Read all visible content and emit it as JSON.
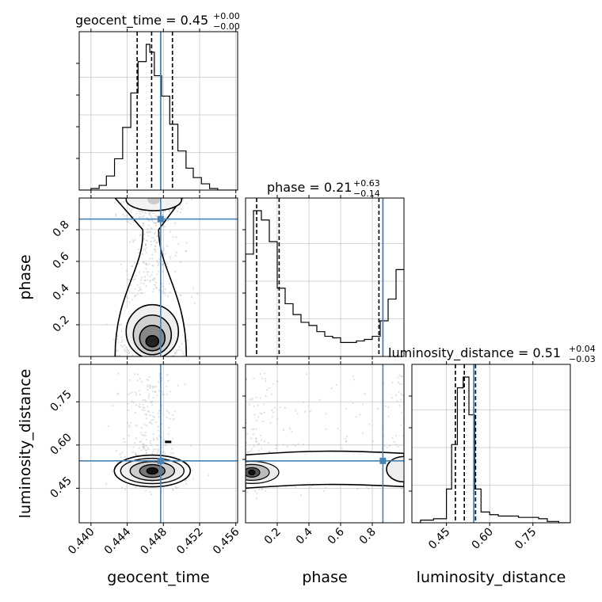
{
  "chart_data": {
    "type": "corner",
    "parameters": [
      "geocent_time",
      "phase",
      "luminosity_distance"
    ],
    "truth": {
      "geocent_time": 0.4477,
      "phase": 0.867,
      "luminosity_distance": 0.545
    },
    "colors": {
      "truth": "#4682b4",
      "hist": "#000000",
      "grid": "#c8c8c8",
      "samples": "#999999"
    },
    "axes": {
      "geocent_time": {
        "range": [
          0.4387,
          0.4562
        ],
        "ticks": [
          0.44,
          0.444,
          0.448,
          0.452,
          0.456
        ],
        "tick_labels": [
          "0.440",
          "0.444",
          "0.448",
          "0.452",
          "0.456"
        ]
      },
      "phase": {
        "range": [
          0.0,
          1.0
        ],
        "ticks": [
          0.2,
          0.4,
          0.6,
          0.8
        ],
        "tick_labels": [
          "0.2",
          "0.4",
          "0.6",
          "0.8"
        ]
      },
      "luminosity_distance": {
        "range": [
          0.33,
          0.88
        ],
        "ticks": [
          0.45,
          0.6,
          0.75
        ],
        "tick_labels": [
          "0.45",
          "0.60",
          "0.75"
        ]
      }
    },
    "titles": {
      "geocent_time": {
        "text": "geocent_time = 0.45",
        "plus": "+0.00",
        "minus": "−0.00"
      },
      "phase": {
        "text": "phase = 0.21",
        "plus": "+0.63",
        "minus": "−0.14"
      },
      "luminosity_distance": {
        "text": "luminosity_distance = 0.51",
        "plus": "+0.04",
        "minus": "−0.03"
      }
    },
    "labels": {
      "x": [
        "geocent_time",
        "phase",
        "luminosity_distance"
      ],
      "y": [
        "phase",
        "luminosity_distance"
      ]
    },
    "quantiles": {
      "geocent_time": [
        0.4451,
        0.4467,
        0.449
      ],
      "phase": [
        0.07,
        0.212,
        0.842
      ],
      "luminosity_distance": [
        0.481,
        0.512,
        0.551
      ]
    },
    "histograms": {
      "geocent_time": {
        "edges": [
          0.4387,
          0.44,
          0.4409,
          0.4417,
          0.4426,
          0.4435,
          0.4444,
          0.4452,
          0.4461,
          0.4465,
          0.447,
          0.4478,
          0.4487,
          0.4496,
          0.4505,
          0.4513,
          0.4522,
          0.4531,
          0.454,
          0.4562
        ],
        "counts": [
          0,
          1,
          3,
          9,
          20,
          40,
          62,
          82,
          93,
          88,
          73,
          60,
          42,
          25,
          14,
          8,
          4,
          1,
          0
        ]
      },
      "phase": {
        "edges": [
          0.0,
          0.05,
          0.1,
          0.15,
          0.2,
          0.25,
          0.3,
          0.35,
          0.4,
          0.45,
          0.5,
          0.55,
          0.6,
          0.65,
          0.7,
          0.75,
          0.8,
          0.85,
          0.9,
          0.95,
          1.0
        ],
        "counts": [
          66,
          94,
          88,
          74,
          44,
          34,
          27,
          22,
          20,
          16,
          13,
          12,
          9,
          9,
          10,
          11,
          13,
          23,
          37,
          56
        ]
      },
      "luminosity_distance": {
        "edges": [
          0.33,
          0.36,
          0.405,
          0.45,
          0.468,
          0.488,
          0.508,
          0.528,
          0.548,
          0.57,
          0.6,
          0.63,
          0.66,
          0.7,
          0.73,
          0.77,
          0.8,
          0.84,
          0.88
        ],
        "counts": [
          0,
          2,
          3,
          25,
          58,
          100,
          108,
          80,
          25,
          8,
          6,
          5,
          5,
          4,
          4,
          3,
          1,
          0
        ]
      }
    },
    "contours_2d": {
      "phase_vs_geocent_time": {
        "peak": [
          0.4466,
          0.08
        ]
      },
      "luminosity_distance_vs_geocent_time": {
        "peak": [
          0.4466,
          0.51
        ]
      },
      "luminosity_distance_vs_phase": {
        "peak": [
          0.07,
          0.505
        ]
      }
    }
  }
}
